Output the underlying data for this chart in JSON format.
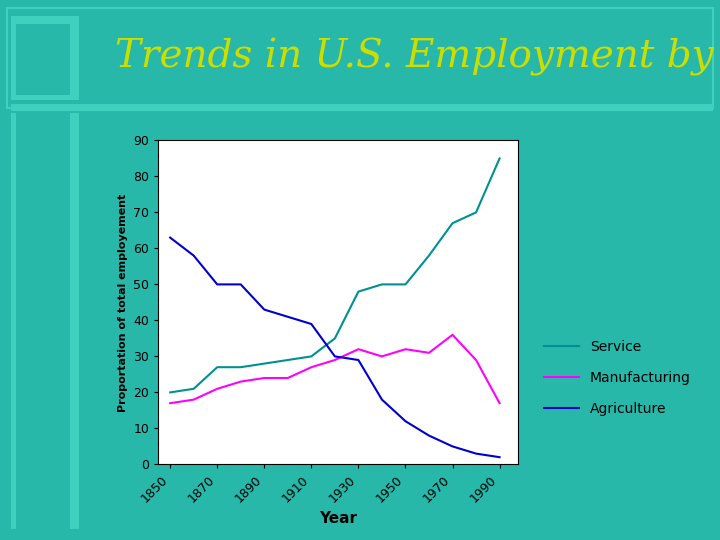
{
  "years": [
    1850,
    1860,
    1870,
    1880,
    1890,
    1900,
    1910,
    1920,
    1930,
    1940,
    1950,
    1960,
    1970,
    1980,
    1990
  ],
  "service": [
    20,
    21,
    27,
    27,
    28,
    29,
    30,
    35,
    48,
    50,
    50,
    58,
    67,
    70,
    85
  ],
  "manufacturing": [
    17,
    18,
    21,
    23,
    24,
    24,
    27,
    29,
    32,
    30,
    32,
    31,
    36,
    29,
    17
  ],
  "agriculture": [
    63,
    58,
    50,
    50,
    43,
    41,
    39,
    30,
    29,
    18,
    12,
    8,
    5,
    3,
    2
  ],
  "service_color": "#009090",
  "manufacturing_color": "#FF00FF",
  "agriculture_color": "#0000CC",
  "background_color": "#28B8AA",
  "lighter_teal": "#40D0C0",
  "plot_bg": "#FFFFFF",
  "title": "Trends in U.S. Employment by Sector",
  "title_color": "#CCDD00",
  "xlabel": "Year",
  "ylabel": "Proportation of total employement",
  "ylim": [
    0,
    90
  ],
  "yticks": [
    0,
    10,
    20,
    30,
    40,
    50,
    60,
    70,
    80,
    90
  ],
  "xtick_labels": [
    "1850",
    "1870",
    "1890",
    "1910",
    "1930",
    "1950",
    "1970",
    "1990"
  ],
  "xtick_positions": [
    1850,
    1870,
    1890,
    1910,
    1930,
    1950,
    1970,
    1990
  ],
  "legend_labels": [
    "Service",
    "Manufacturing",
    "Agriculture"
  ],
  "title_fontsize": 28,
  "axis_fontsize": 9,
  "legend_fontsize": 10,
  "ylabel_fontsize": 8,
  "xlabel_fontsize": 11
}
